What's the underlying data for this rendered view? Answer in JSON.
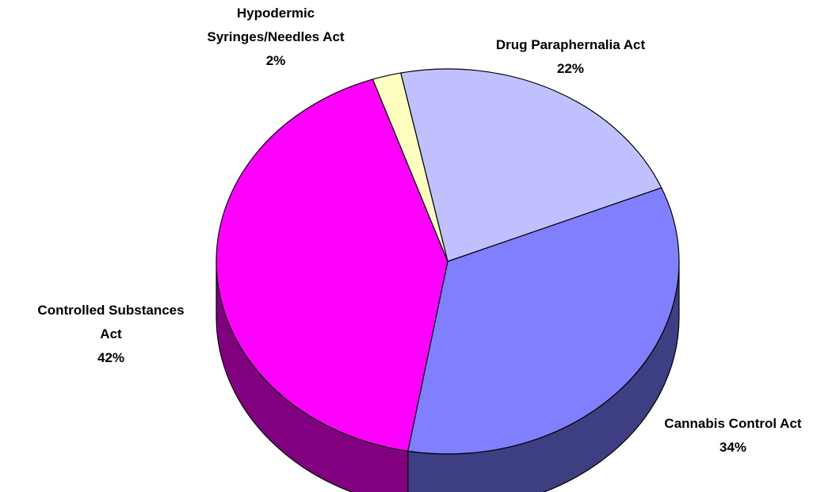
{
  "chart_data": {
    "type": "pie",
    "title": "",
    "start_angle_deg": 258.3,
    "slices": [
      {
        "label_lines": [
          "Drug Paraphernalia Act"
        ],
        "value": 22,
        "percent_label": "22%",
        "color": "#C0C0FF",
        "side_color": "#60607F"
      },
      {
        "label_lines": [
          "Cannabis Control Act"
        ],
        "value": 34,
        "percent_label": "34%",
        "color": "#8080FF",
        "side_color": "#3E3E82"
      },
      {
        "label_lines": [
          "Controlled Substances",
          "Act"
        ],
        "value": 42,
        "percent_label": "42%",
        "color": "#FF00FF",
        "side_color": "#800080"
      },
      {
        "label_lines": [
          "Hypodermic",
          "Syringes/Needles Act"
        ],
        "value": 2,
        "percent_label": "2%",
        "color": "#FFFFC0",
        "side_color": "#80805F"
      }
    ]
  }
}
